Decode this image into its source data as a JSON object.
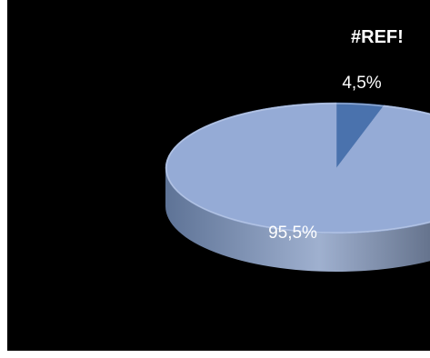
{
  "chart_data": {
    "type": "pie",
    "title": "#REF!",
    "slices": [
      {
        "value": 4.5,
        "label": "4,5%",
        "color": "#4a72ad"
      },
      {
        "value": 95.5,
        "label": "95,5%",
        "color": "#95abd6"
      }
    ],
    "side_colors": [
      "#5e7396",
      "#9fb0cf",
      "#3e4a60"
    ]
  }
}
